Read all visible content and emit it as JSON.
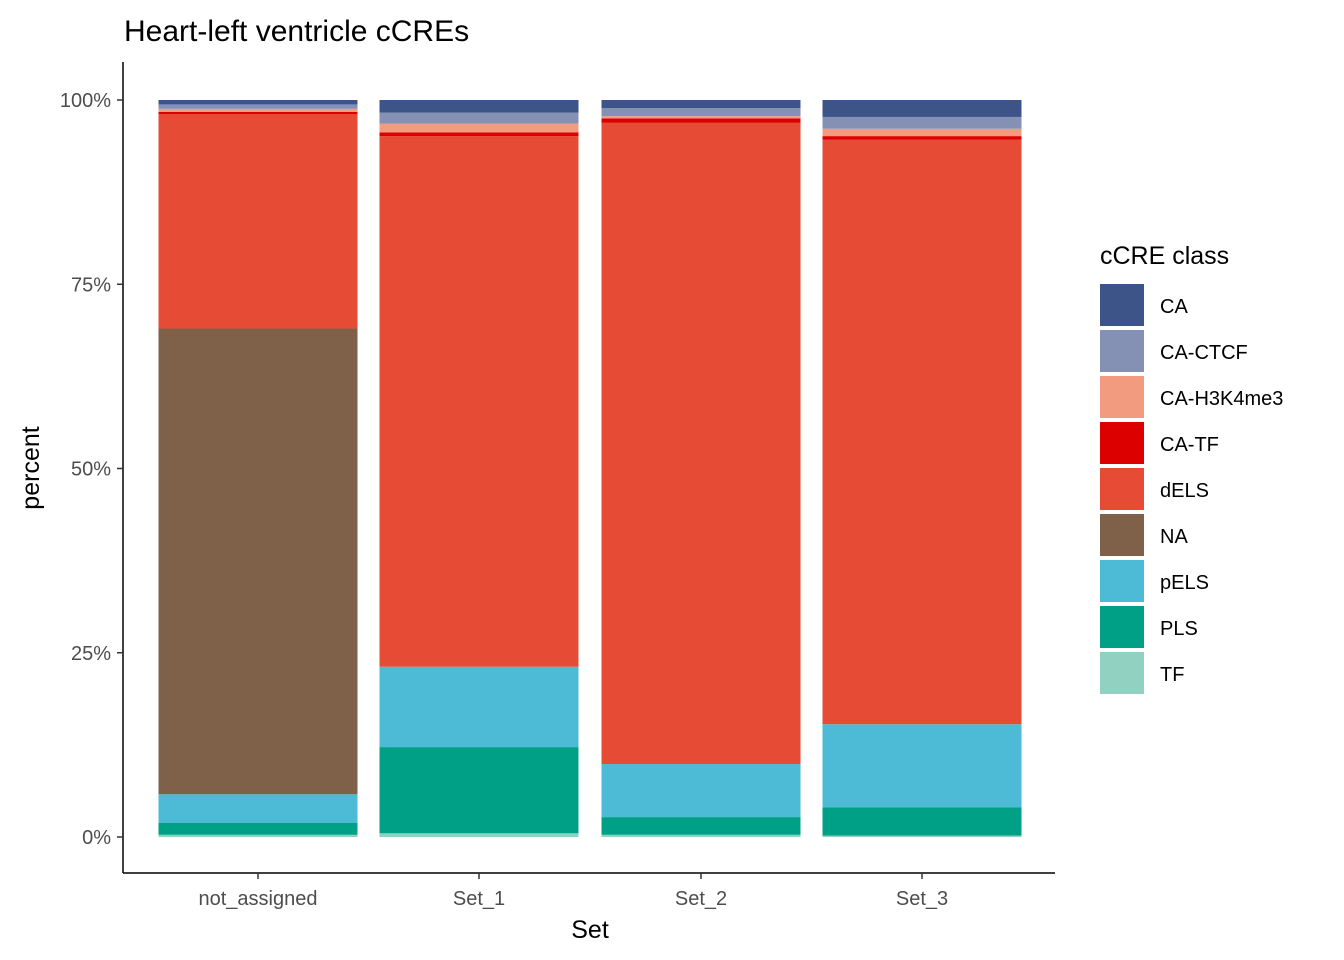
{
  "chart_data": {
    "type": "bar",
    "stacked": true,
    "title": "Heart-left ventricle cCREs",
    "xlabel": "Set",
    "ylabel": "percent",
    "ylim": [
      0,
      100
    ],
    "yticks": [
      "0%",
      "25%",
      "50%",
      "75%",
      "100%"
    ],
    "yticks_values": [
      0,
      25,
      50,
      75,
      100
    ],
    "categories": [
      "not_assigned",
      "Set_1",
      "Set_2",
      "Set_3"
    ],
    "legend_title": "cCRE class",
    "legend_position": "right",
    "series": [
      {
        "name": "CA",
        "color": "#3c5488",
        "values": [
          0.6,
          1.7,
          1.1,
          2.3
        ]
      },
      {
        "name": "CA-CTCF",
        "color": "#8491b4",
        "values": [
          0.6,
          1.5,
          1.1,
          1.6
        ]
      },
      {
        "name": "CA-H3K4me3",
        "color": "#f39b7f",
        "values": [
          0.4,
          1.2,
          0.3,
          1.0
        ]
      },
      {
        "name": "CA-TF",
        "color": "#dc0000",
        "values": [
          0.3,
          0.5,
          0.6,
          0.5
        ]
      },
      {
        "name": "dELS",
        "color": "#e64b35",
        "values": [
          29.1,
          72.0,
          87.0,
          79.3
        ]
      },
      {
        "name": "NA",
        "color": "#7e6148",
        "values": [
          63.2,
          0.0,
          0.0,
          0.0
        ]
      },
      {
        "name": "pELS",
        "color": "#4dbbd5",
        "values": [
          3.9,
          10.9,
          7.2,
          11.3
        ]
      },
      {
        "name": "PLS",
        "color": "#00a087",
        "values": [
          1.6,
          11.7,
          2.4,
          3.8
        ]
      },
      {
        "name": "TF",
        "color": "#91d1c2",
        "values": [
          0.3,
          0.5,
          0.3,
          0.2
        ]
      }
    ]
  }
}
